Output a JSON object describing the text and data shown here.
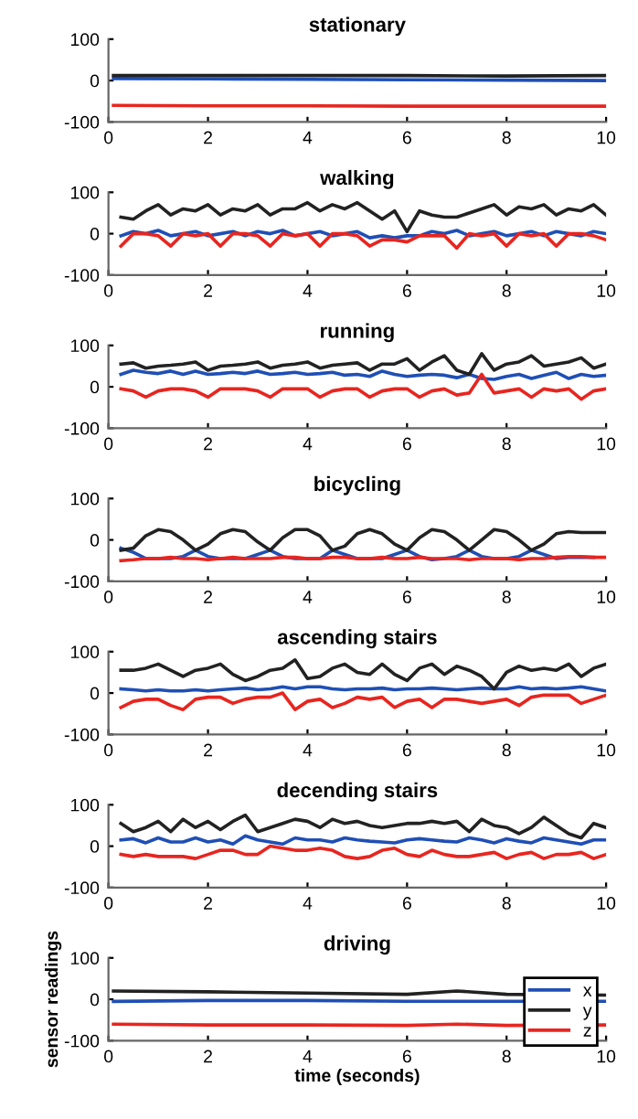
{
  "chart_data": [
    {
      "type": "line",
      "title": "stationary",
      "x": [
        0.1,
        2,
        4,
        6,
        8,
        10
      ],
      "xlim": [
        0,
        10
      ],
      "xticks": [
        0,
        2,
        4,
        6,
        8,
        10
      ],
      "ylim": [
        -100,
        100
      ],
      "yticks": [
        -100,
        0,
        100
      ],
      "grid": false,
      "legend": false,
      "series": [
        {
          "color": "#1f4fb5",
          "values": [
            5,
            4,
            3,
            2,
            1,
            0
          ]
        },
        {
          "color": "#222222",
          "values": [
            12,
            12,
            12,
            12,
            11,
            12
          ]
        },
        {
          "color": "#e8251f",
          "values": [
            -60,
            -61,
            -61,
            -62,
            -62,
            -62
          ]
        }
      ]
    },
    {
      "type": "line",
      "title": "walking",
      "x": [
        0.25,
        0.5,
        0.75,
        1,
        1.25,
        1.5,
        1.75,
        2,
        2.25,
        2.5,
        2.75,
        3,
        3.25,
        3.5,
        3.75,
        4,
        4.25,
        4.5,
        4.75,
        5,
        5.25,
        5.5,
        5.75,
        6,
        6.25,
        6.5,
        6.75,
        7,
        7.25,
        7.5,
        7.75,
        8,
        8.25,
        8.5,
        8.75,
        9,
        9.25,
        9.5,
        9.75,
        10
      ],
      "xlim": [
        0,
        10
      ],
      "xticks": [
        0,
        2,
        4,
        6,
        8,
        10
      ],
      "ylim": [
        -100,
        100
      ],
      "yticks": [
        -100,
        0,
        100
      ],
      "grid": false,
      "legend": false,
      "series": [
        {
          "color": "#1f4fb5",
          "values": [
            -5,
            5,
            0,
            8,
            -5,
            0,
            5,
            -5,
            0,
            5,
            -5,
            5,
            0,
            8,
            -5,
            0,
            5,
            -5,
            0,
            5,
            -10,
            -5,
            -10,
            -5,
            -5,
            5,
            0,
            8,
            -5,
            0,
            5,
            -5,
            0,
            5,
            -5,
            5,
            0,
            -5,
            5,
            0
          ]
        },
        {
          "color": "#222222",
          "values": [
            40,
            35,
            55,
            70,
            45,
            60,
            55,
            70,
            45,
            60,
            55,
            70,
            45,
            60,
            60,
            75,
            55,
            70,
            60,
            75,
            55,
            35,
            55,
            5,
            55,
            45,
            40,
            40,
            50,
            60,
            70,
            45,
            65,
            60,
            70,
            45,
            60,
            55,
            70,
            45
          ]
        },
        {
          "color": "#e8251f",
          "values": [
            -30,
            0,
            0,
            -5,
            -30,
            0,
            -5,
            0,
            -30,
            0,
            0,
            -5,
            -30,
            0,
            -5,
            0,
            -30,
            0,
            0,
            -5,
            -30,
            -15,
            -15,
            -20,
            -5,
            -5,
            -5,
            -35,
            0,
            -5,
            0,
            -30,
            0,
            -5,
            0,
            -30,
            0,
            0,
            -5,
            -15
          ]
        }
      ]
    },
    {
      "type": "line",
      "title": "running",
      "x": [
        0.25,
        0.5,
        0.75,
        1,
        1.25,
        1.5,
        1.75,
        2,
        2.25,
        2.5,
        2.75,
        3,
        3.25,
        3.5,
        3.75,
        4,
        4.25,
        4.5,
        4.75,
        5,
        5.25,
        5.5,
        5.75,
        6,
        6.25,
        6.5,
        6.75,
        7,
        7.25,
        7.5,
        7.75,
        8,
        8.25,
        8.5,
        8.75,
        9,
        9.25,
        9.5,
        9.75,
        10
      ],
      "xlim": [
        0,
        10
      ],
      "xticks": [
        0,
        2,
        4,
        6,
        8,
        10
      ],
      "ylim": [
        -100,
        100
      ],
      "yticks": [
        -100,
        0,
        100
      ],
      "grid": false,
      "legend": false,
      "series": [
        {
          "color": "#1f4fb5",
          "values": [
            30,
            40,
            35,
            32,
            38,
            30,
            38,
            30,
            32,
            35,
            32,
            38,
            30,
            32,
            35,
            30,
            32,
            35,
            28,
            30,
            25,
            38,
            30,
            25,
            28,
            30,
            28,
            22,
            30,
            20,
            18,
            25,
            30,
            20,
            28,
            35,
            20,
            30,
            25,
            28
          ]
        },
        {
          "color": "#222222",
          "values": [
            55,
            58,
            45,
            50,
            52,
            55,
            60,
            40,
            50,
            52,
            55,
            60,
            45,
            52,
            55,
            60,
            45,
            52,
            55,
            58,
            40,
            55,
            55,
            68,
            40,
            60,
            75,
            40,
            30,
            80,
            40,
            55,
            60,
            75,
            50,
            55,
            60,
            70,
            45,
            55
          ]
        },
        {
          "color": "#e8251f",
          "values": [
            -5,
            -10,
            -25,
            -10,
            -5,
            -5,
            -10,
            -25,
            -5,
            -5,
            -5,
            -10,
            -25,
            -5,
            -5,
            -5,
            -25,
            -10,
            -5,
            -5,
            -25,
            -10,
            -5,
            -5,
            -25,
            -10,
            -5,
            -20,
            -15,
            30,
            -15,
            -10,
            -5,
            -25,
            -5,
            -10,
            -5,
            -30,
            -10,
            -5
          ]
        }
      ]
    },
    {
      "type": "line",
      "title": "bicycling",
      "x": [
        0.25,
        0.5,
        0.75,
        1,
        1.25,
        1.5,
        1.75,
        2,
        2.25,
        2.5,
        2.75,
        3,
        3.25,
        3.5,
        3.75,
        4,
        4.25,
        4.5,
        4.75,
        5,
        5.25,
        5.5,
        5.75,
        6,
        6.25,
        6.5,
        6.75,
        7,
        7.25,
        7.5,
        7.75,
        8,
        8.25,
        8.5,
        8.75,
        9,
        9.25,
        9.5,
        9.75,
        10
      ],
      "xlim": [
        0,
        10
      ],
      "xticks": [
        0,
        2,
        4,
        6,
        8,
        10
      ],
      "ylim": [
        -100,
        100
      ],
      "yticks": [
        -100,
        0,
        100
      ],
      "grid": false,
      "legend": false,
      "series": [
        {
          "color": "#1f4fb5",
          "values": [
            -20,
            -30,
            -45,
            -45,
            -45,
            -40,
            -25,
            -40,
            -45,
            -45,
            -45,
            -35,
            -25,
            -40,
            -45,
            -45,
            -45,
            -25,
            -35,
            -45,
            -45,
            -45,
            -35,
            -25,
            -40,
            -48,
            -45,
            -40,
            -25,
            -40,
            -45,
            -45,
            -40,
            -25,
            -35,
            -45,
            -42,
            -42,
            -42,
            null
          ]
        },
        {
          "color": "#222222",
          "values": [
            -25,
            -20,
            10,
            25,
            20,
            0,
            -25,
            -10,
            15,
            25,
            20,
            -5,
            -25,
            5,
            25,
            25,
            10,
            -25,
            -15,
            15,
            25,
            15,
            -10,
            -25,
            5,
            25,
            20,
            0,
            -25,
            0,
            25,
            20,
            0,
            -25,
            -10,
            15,
            20,
            18,
            18,
            18
          ]
        },
        {
          "color": "#e8251f",
          "values": [
            -50,
            -48,
            -45,
            -45,
            -42,
            -45,
            -45,
            -48,
            -45,
            -42,
            -45,
            -45,
            -45,
            -42,
            -42,
            -45,
            -45,
            -42,
            -42,
            -45,
            -45,
            -42,
            -45,
            -45,
            -42,
            -45,
            -45,
            -45,
            -48,
            -45,
            -45,
            -45,
            -48,
            -45,
            -45,
            -42,
            -40,
            -40,
            -42,
            -42
          ]
        }
      ]
    },
    {
      "type": "line",
      "title": "ascending stairs",
      "x": [
        0.25,
        0.5,
        0.75,
        1,
        1.25,
        1.5,
        1.75,
        2,
        2.25,
        2.5,
        2.75,
        3,
        3.25,
        3.5,
        3.75,
        4,
        4.25,
        4.5,
        4.75,
        5,
        5.25,
        5.5,
        5.75,
        6,
        6.25,
        6.5,
        6.75,
        7,
        7.25,
        7.5,
        7.75,
        8,
        8.25,
        8.5,
        8.75,
        9,
        9.25,
        9.5,
        9.75,
        10
      ],
      "xlim": [
        0,
        10
      ],
      "xticks": [
        0,
        2,
        4,
        6,
        8,
        10
      ],
      "ylim": [
        -100,
        100
      ],
      "yticks": [
        -100,
        0,
        100
      ],
      "grid": false,
      "legend": false,
      "series": [
        {
          "color": "#1f4fb5",
          "values": [
            10,
            8,
            5,
            8,
            5,
            5,
            8,
            5,
            8,
            10,
            12,
            8,
            10,
            15,
            10,
            15,
            15,
            10,
            8,
            10,
            10,
            12,
            8,
            10,
            10,
            12,
            10,
            8,
            10,
            12,
            10,
            10,
            15,
            10,
            12,
            10,
            12,
            15,
            10,
            5
          ]
        },
        {
          "color": "#222222",
          "values": [
            55,
            55,
            60,
            70,
            55,
            40,
            55,
            60,
            70,
            45,
            30,
            40,
            55,
            60,
            80,
            35,
            40,
            60,
            70,
            50,
            45,
            70,
            45,
            30,
            60,
            70,
            45,
            65,
            55,
            40,
            10,
            50,
            65,
            55,
            60,
            55,
            70,
            40,
            60,
            70
          ]
        },
        {
          "color": "#e8251f",
          "values": [
            -35,
            -20,
            -15,
            -15,
            -30,
            -40,
            -15,
            -10,
            -10,
            -25,
            -15,
            -10,
            -10,
            0,
            -40,
            -20,
            -15,
            -35,
            -25,
            -10,
            -15,
            -10,
            -35,
            -20,
            -15,
            -35,
            -15,
            -15,
            -20,
            -25,
            -20,
            -15,
            -30,
            -10,
            -5,
            -5,
            -5,
            -25,
            -15,
            -5
          ]
        }
      ]
    },
    {
      "type": "line",
      "title": "decending stairs",
      "x": [
        0.25,
        0.5,
        0.75,
        1,
        1.25,
        1.5,
        1.75,
        2,
        2.25,
        2.5,
        2.75,
        3,
        3.25,
        3.5,
        3.75,
        4,
        4.25,
        4.5,
        4.75,
        5,
        5.25,
        5.5,
        5.75,
        6,
        6.25,
        6.5,
        6.75,
        7,
        7.25,
        7.5,
        7.75,
        8,
        8.25,
        8.5,
        8.75,
        9,
        9.25,
        9.5,
        9.75,
        10
      ],
      "xlim": [
        0,
        10
      ],
      "xticks": [
        0,
        2,
        4,
        6,
        8,
        10
      ],
      "ylim": [
        -100,
        100
      ],
      "yticks": [
        -100,
        0,
        100
      ],
      "grid": false,
      "legend": false,
      "series": [
        {
          "color": "#1f4fb5",
          "values": [
            15,
            18,
            8,
            20,
            10,
            10,
            20,
            10,
            15,
            5,
            25,
            15,
            10,
            5,
            20,
            15,
            15,
            10,
            20,
            15,
            12,
            10,
            8,
            15,
            18,
            15,
            12,
            10,
            20,
            15,
            8,
            18,
            12,
            8,
            20,
            15,
            10,
            5,
            15,
            15
          ]
        },
        {
          "color": "#222222",
          "values": [
            55,
            35,
            45,
            60,
            35,
            65,
            45,
            60,
            40,
            60,
            75,
            35,
            45,
            55,
            65,
            60,
            45,
            65,
            55,
            60,
            50,
            45,
            50,
            55,
            55,
            60,
            55,
            60,
            35,
            65,
            50,
            45,
            30,
            45,
            70,
            50,
            30,
            20,
            55,
            45
          ]
        },
        {
          "color": "#e8251f",
          "values": [
            -20,
            -25,
            -20,
            -25,
            -25,
            -25,
            -30,
            -20,
            -10,
            -10,
            -20,
            -20,
            0,
            -5,
            -10,
            -10,
            -5,
            -10,
            -25,
            -30,
            -25,
            -10,
            -5,
            -20,
            -25,
            -10,
            -20,
            -25,
            -25,
            -20,
            -15,
            -30,
            -20,
            -15,
            -30,
            -20,
            -20,
            -15,
            -30,
            -20
          ]
        }
      ]
    },
    {
      "type": "line",
      "title": "driving",
      "xlabel": "time (seconds)",
      "ylabel": "sensor readings",
      "x": [
        0.1,
        2,
        4,
        6,
        7,
        8,
        10
      ],
      "xlim": [
        0,
        10
      ],
      "xticks": [
        0,
        2,
        4,
        6,
        8,
        10
      ],
      "ylim": [
        -100,
        100
      ],
      "yticks": [
        -100,
        0,
        100
      ],
      "grid": false,
      "legend": "right",
      "series": [
        {
          "name": "x",
          "color": "#1f4fb5",
          "values": [
            -5,
            -3,
            -3,
            -5,
            -5,
            -5,
            -5
          ]
        },
        {
          "name": "y",
          "color": "#222222",
          "values": [
            20,
            18,
            15,
            12,
            20,
            12,
            10
          ]
        },
        {
          "name": "z",
          "color": "#e8251f",
          "values": [
            -60,
            -62,
            -62,
            -63,
            -60,
            -63,
            -62
          ]
        }
      ]
    }
  ]
}
